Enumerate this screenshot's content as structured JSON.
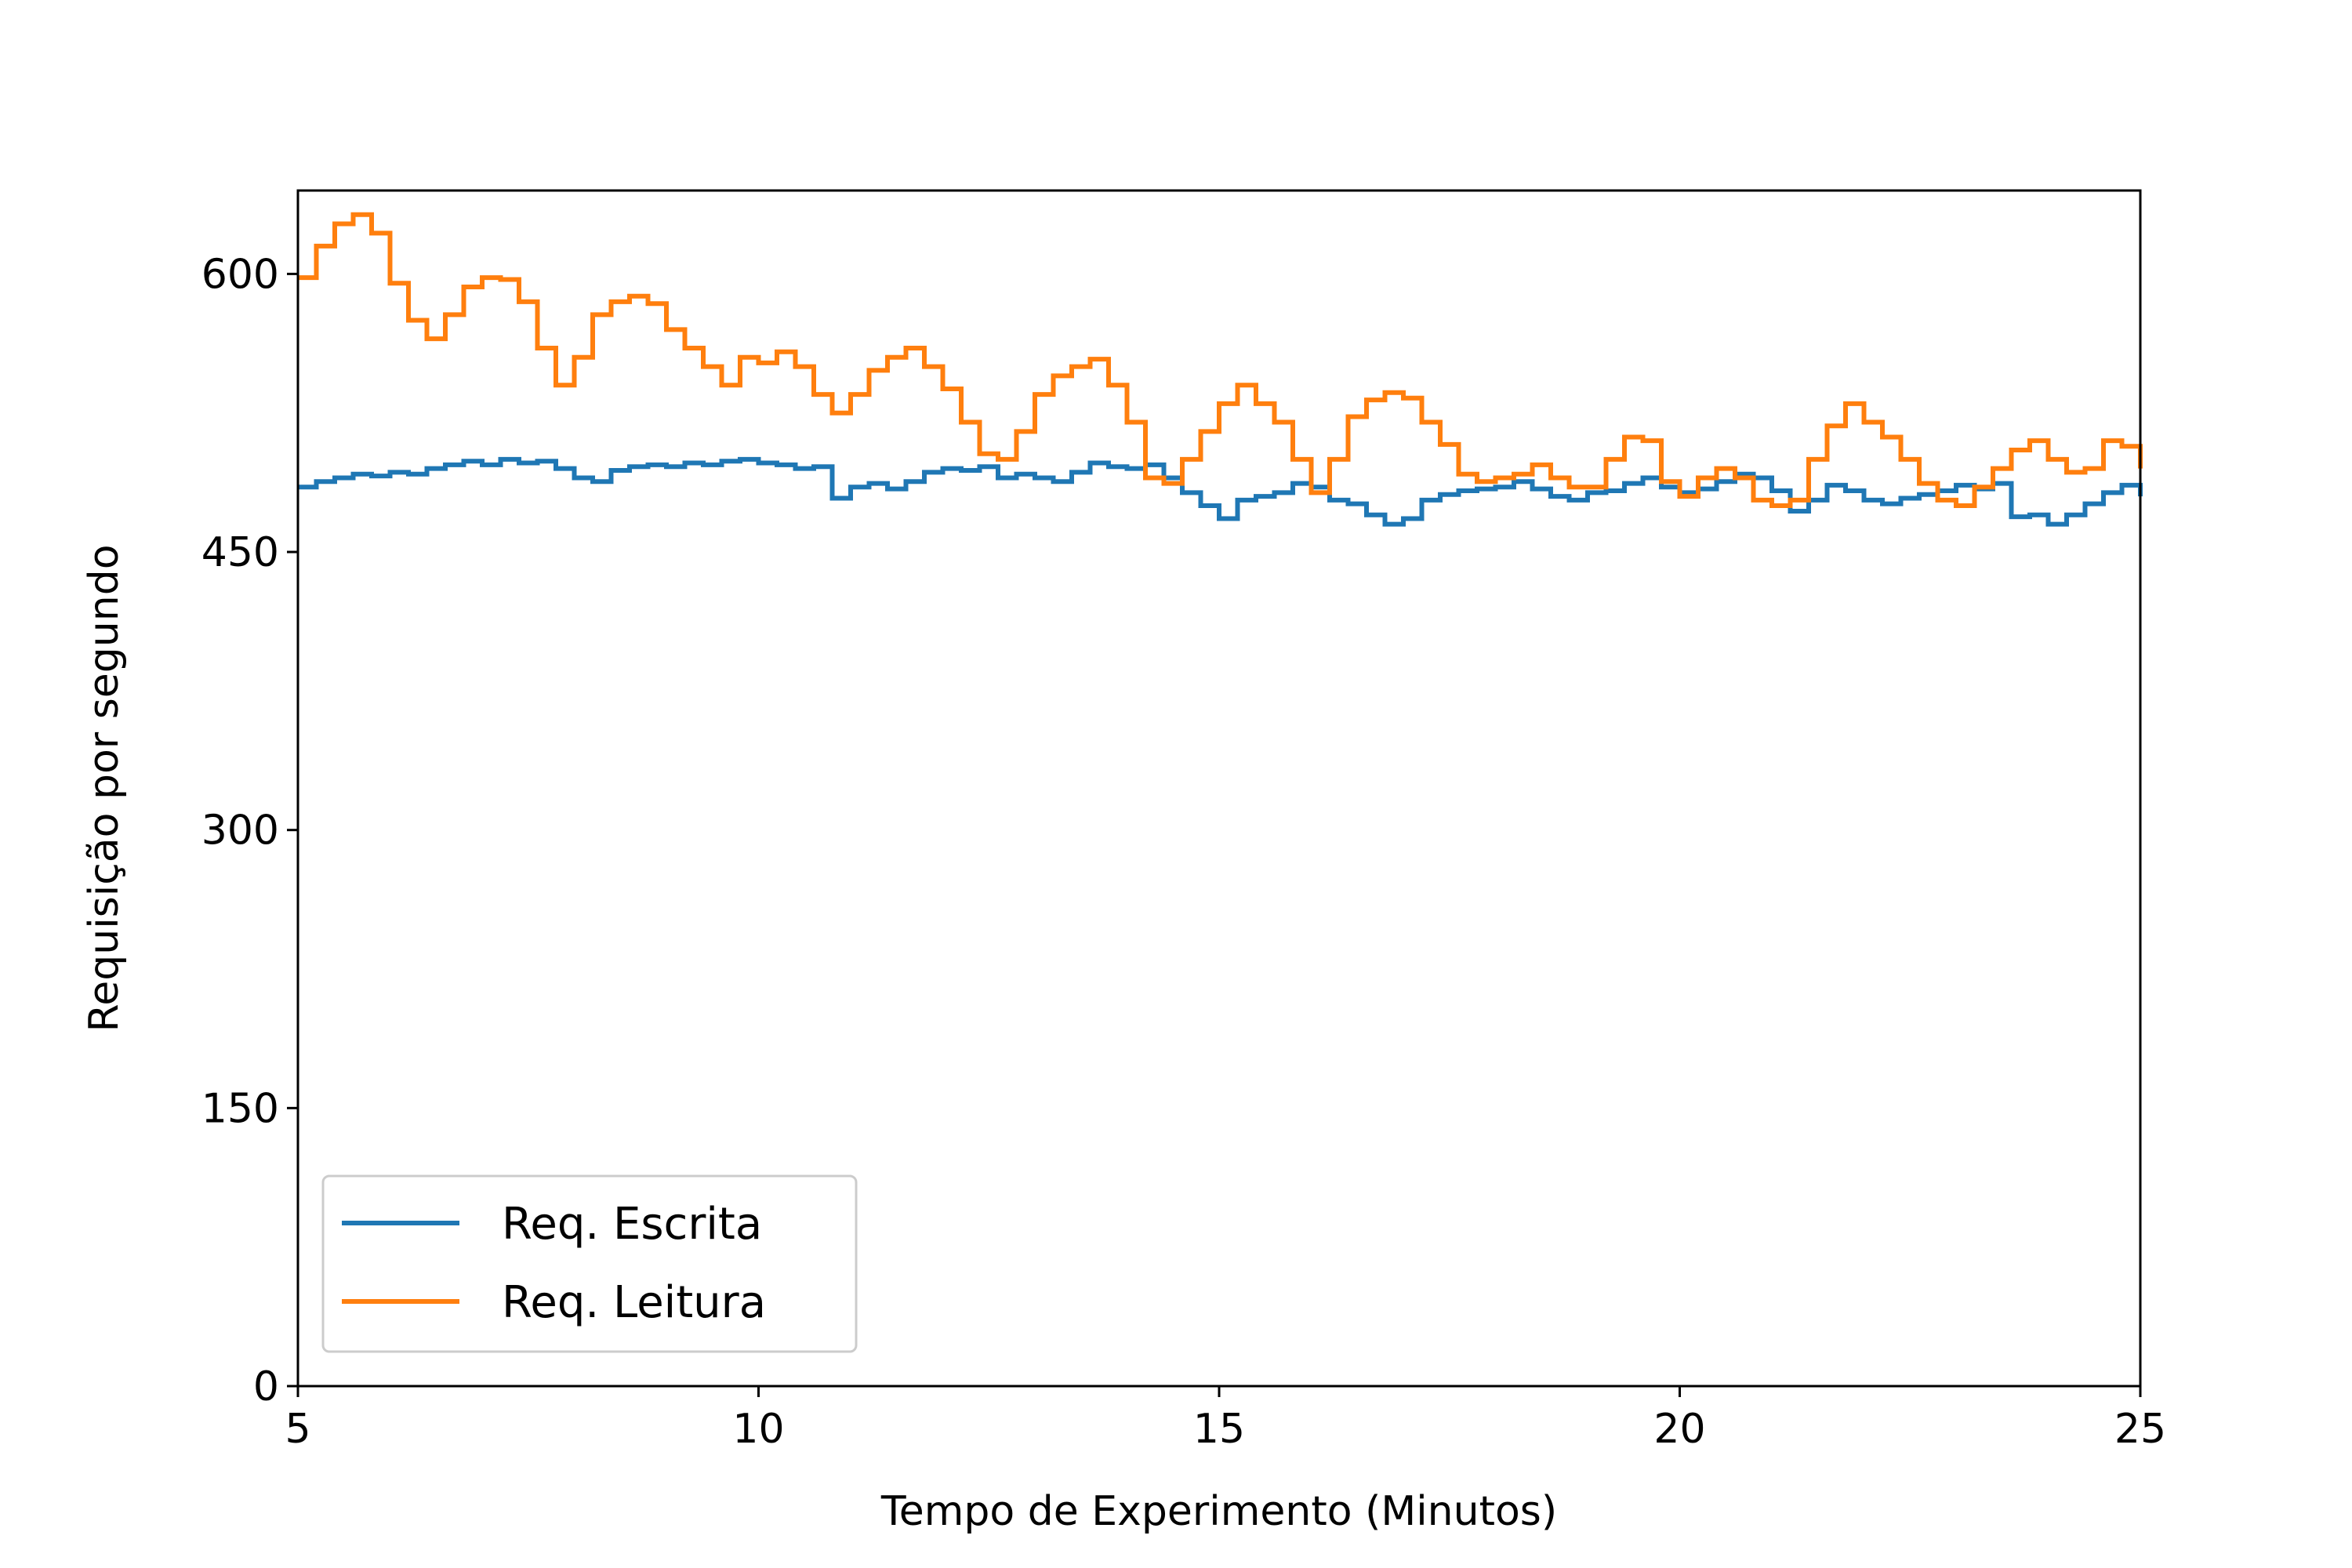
{
  "chart_data": {
    "type": "line",
    "title": "",
    "xlabel": "Tempo de Experimento (Minutos)",
    "ylabel": "Requisição por segundo",
    "xlim": [
      5,
      25
    ],
    "ylim": [
      0,
      645
    ],
    "xticks": [
      5,
      10,
      15,
      20,
      25
    ],
    "yticks": [
      0,
      150,
      300,
      450,
      600
    ],
    "grid": false,
    "legend_position": "lower-left",
    "x": [
      5.0,
      5.2,
      5.4,
      5.6,
      5.8,
      6.0,
      6.2,
      6.4,
      6.6,
      6.8,
      7.0,
      7.2,
      7.4,
      7.6,
      7.8,
      8.0,
      8.2,
      8.4,
      8.6,
      8.8,
      9.0,
      9.2,
      9.4,
      9.6,
      9.8,
      10.0,
      10.2,
      10.4,
      10.6,
      10.8,
      11.0,
      11.2,
      11.4,
      11.6,
      11.8,
      12.0,
      12.2,
      12.4,
      12.6,
      12.8,
      13.0,
      13.2,
      13.4,
      13.6,
      13.8,
      14.0,
      14.2,
      14.4,
      14.6,
      14.8,
      15.0,
      15.2,
      15.4,
      15.6,
      15.8,
      16.0,
      16.2,
      16.4,
      16.6,
      16.8,
      17.0,
      17.2,
      17.4,
      17.6,
      17.8,
      18.0,
      18.2,
      18.4,
      18.6,
      18.8,
      19.0,
      19.2,
      19.4,
      19.6,
      19.8,
      20.0,
      20.2,
      20.4,
      20.6,
      20.8,
      21.0,
      21.2,
      21.4,
      21.6,
      21.8,
      22.0,
      22.2,
      22.4,
      22.6,
      22.8,
      23.0,
      23.2,
      23.4,
      23.6,
      23.8,
      24.0,
      24.2,
      24.4,
      24.6,
      24.8,
      25.0
    ],
    "series": [
      {
        "name": "Req. Escrita",
        "color": "#1f77b4",
        "values": [
          485,
          488,
          490,
          492,
          491,
          493,
          492,
          495,
          497,
          499,
          497,
          500,
          498,
          499,
          495,
          490,
          488,
          494,
          496,
          497,
          496,
          498,
          497,
          499,
          500,
          498,
          497,
          495,
          496,
          479,
          485,
          487,
          484,
          488,
          493,
          495,
          494,
          496,
          490,
          492,
          490,
          488,
          493,
          498,
          496,
          495,
          497,
          490,
          482,
          475,
          468,
          478,
          480,
          482,
          487,
          485,
          478,
          476,
          470,
          465,
          468,
          478,
          481,
          483,
          484,
          485,
          488,
          484,
          480,
          478,
          482,
          483,
          487,
          490,
          485,
          482,
          484,
          488,
          492,
          490,
          483,
          472,
          478,
          486,
          483,
          478,
          476,
          479,
          481,
          483,
          486,
          484,
          487,
          469,
          470,
          465,
          470,
          476,
          482,
          486,
          480
        ]
      },
      {
        "name": "Req. Leitura",
        "color": "#ff7f0e",
        "values": [
          598,
          615,
          627,
          632,
          622,
          595,
          575,
          565,
          578,
          593,
          598,
          597,
          585,
          560,
          540,
          555,
          578,
          585,
          588,
          584,
          570,
          560,
          550,
          540,
          555,
          552,
          558,
          550,
          535,
          525,
          535,
          548,
          555,
          560,
          550,
          538,
          520,
          503,
          500,
          515,
          535,
          545,
          550,
          554,
          540,
          520,
          490,
          487,
          500,
          515,
          530,
          540,
          530,
          520,
          500,
          482,
          500,
          523,
          532,
          536,
          533,
          520,
          508,
          492,
          488,
          490,
          492,
          497,
          490,
          485,
          485,
          500,
          512,
          510,
          488,
          480,
          490,
          495,
          490,
          478,
          475,
          478,
          500,
          518,
          530,
          520,
          512,
          500,
          487,
          478,
          475,
          485,
          495,
          505,
          510,
          500,
          493,
          495,
          510,
          507,
          495
        ]
      }
    ]
  }
}
